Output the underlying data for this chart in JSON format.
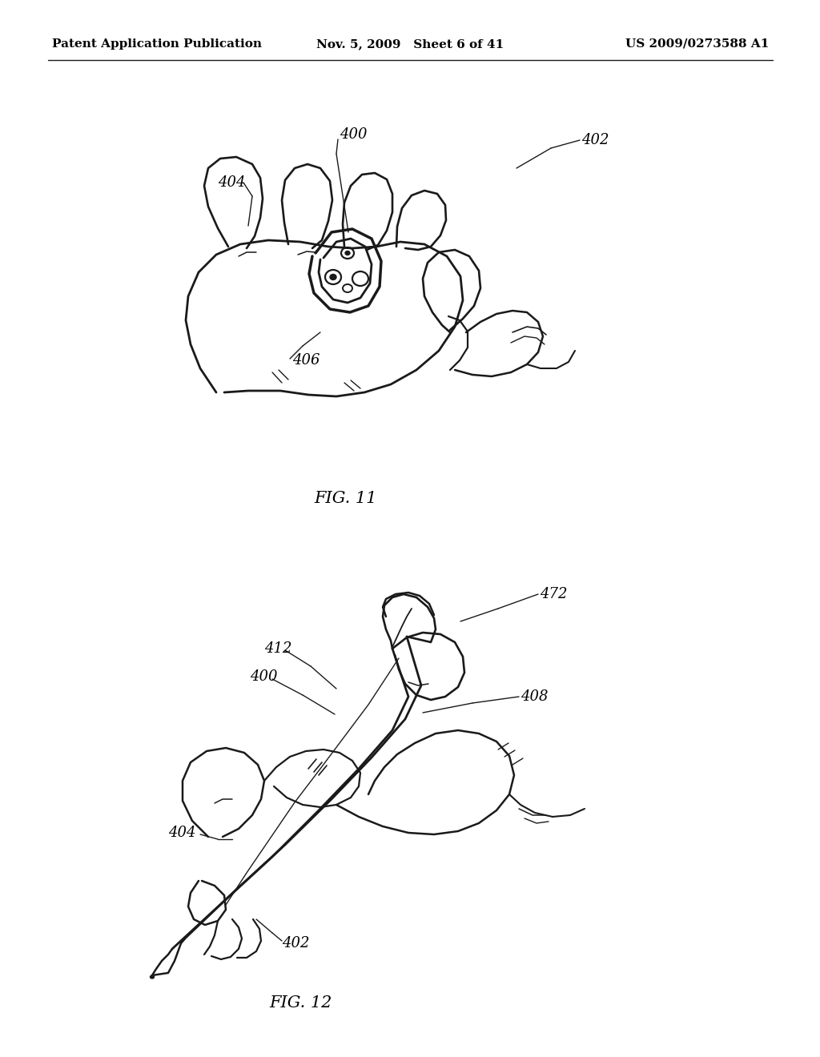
{
  "background_color": "#ffffff",
  "header_left": "Patent Application Publication",
  "header_mid": "Nov. 5, 2009   Sheet 6 of 41",
  "header_right": "US 2009/0273588 A1",
  "fig11_label": "FIG. 11",
  "fig12_label": "FIG. 12",
  "line_color": "#1a1a1a",
  "text_color": "#000000",
  "header_fontsize": 11,
  "fig_label_fontsize": 15,
  "ref_fontsize": 13
}
